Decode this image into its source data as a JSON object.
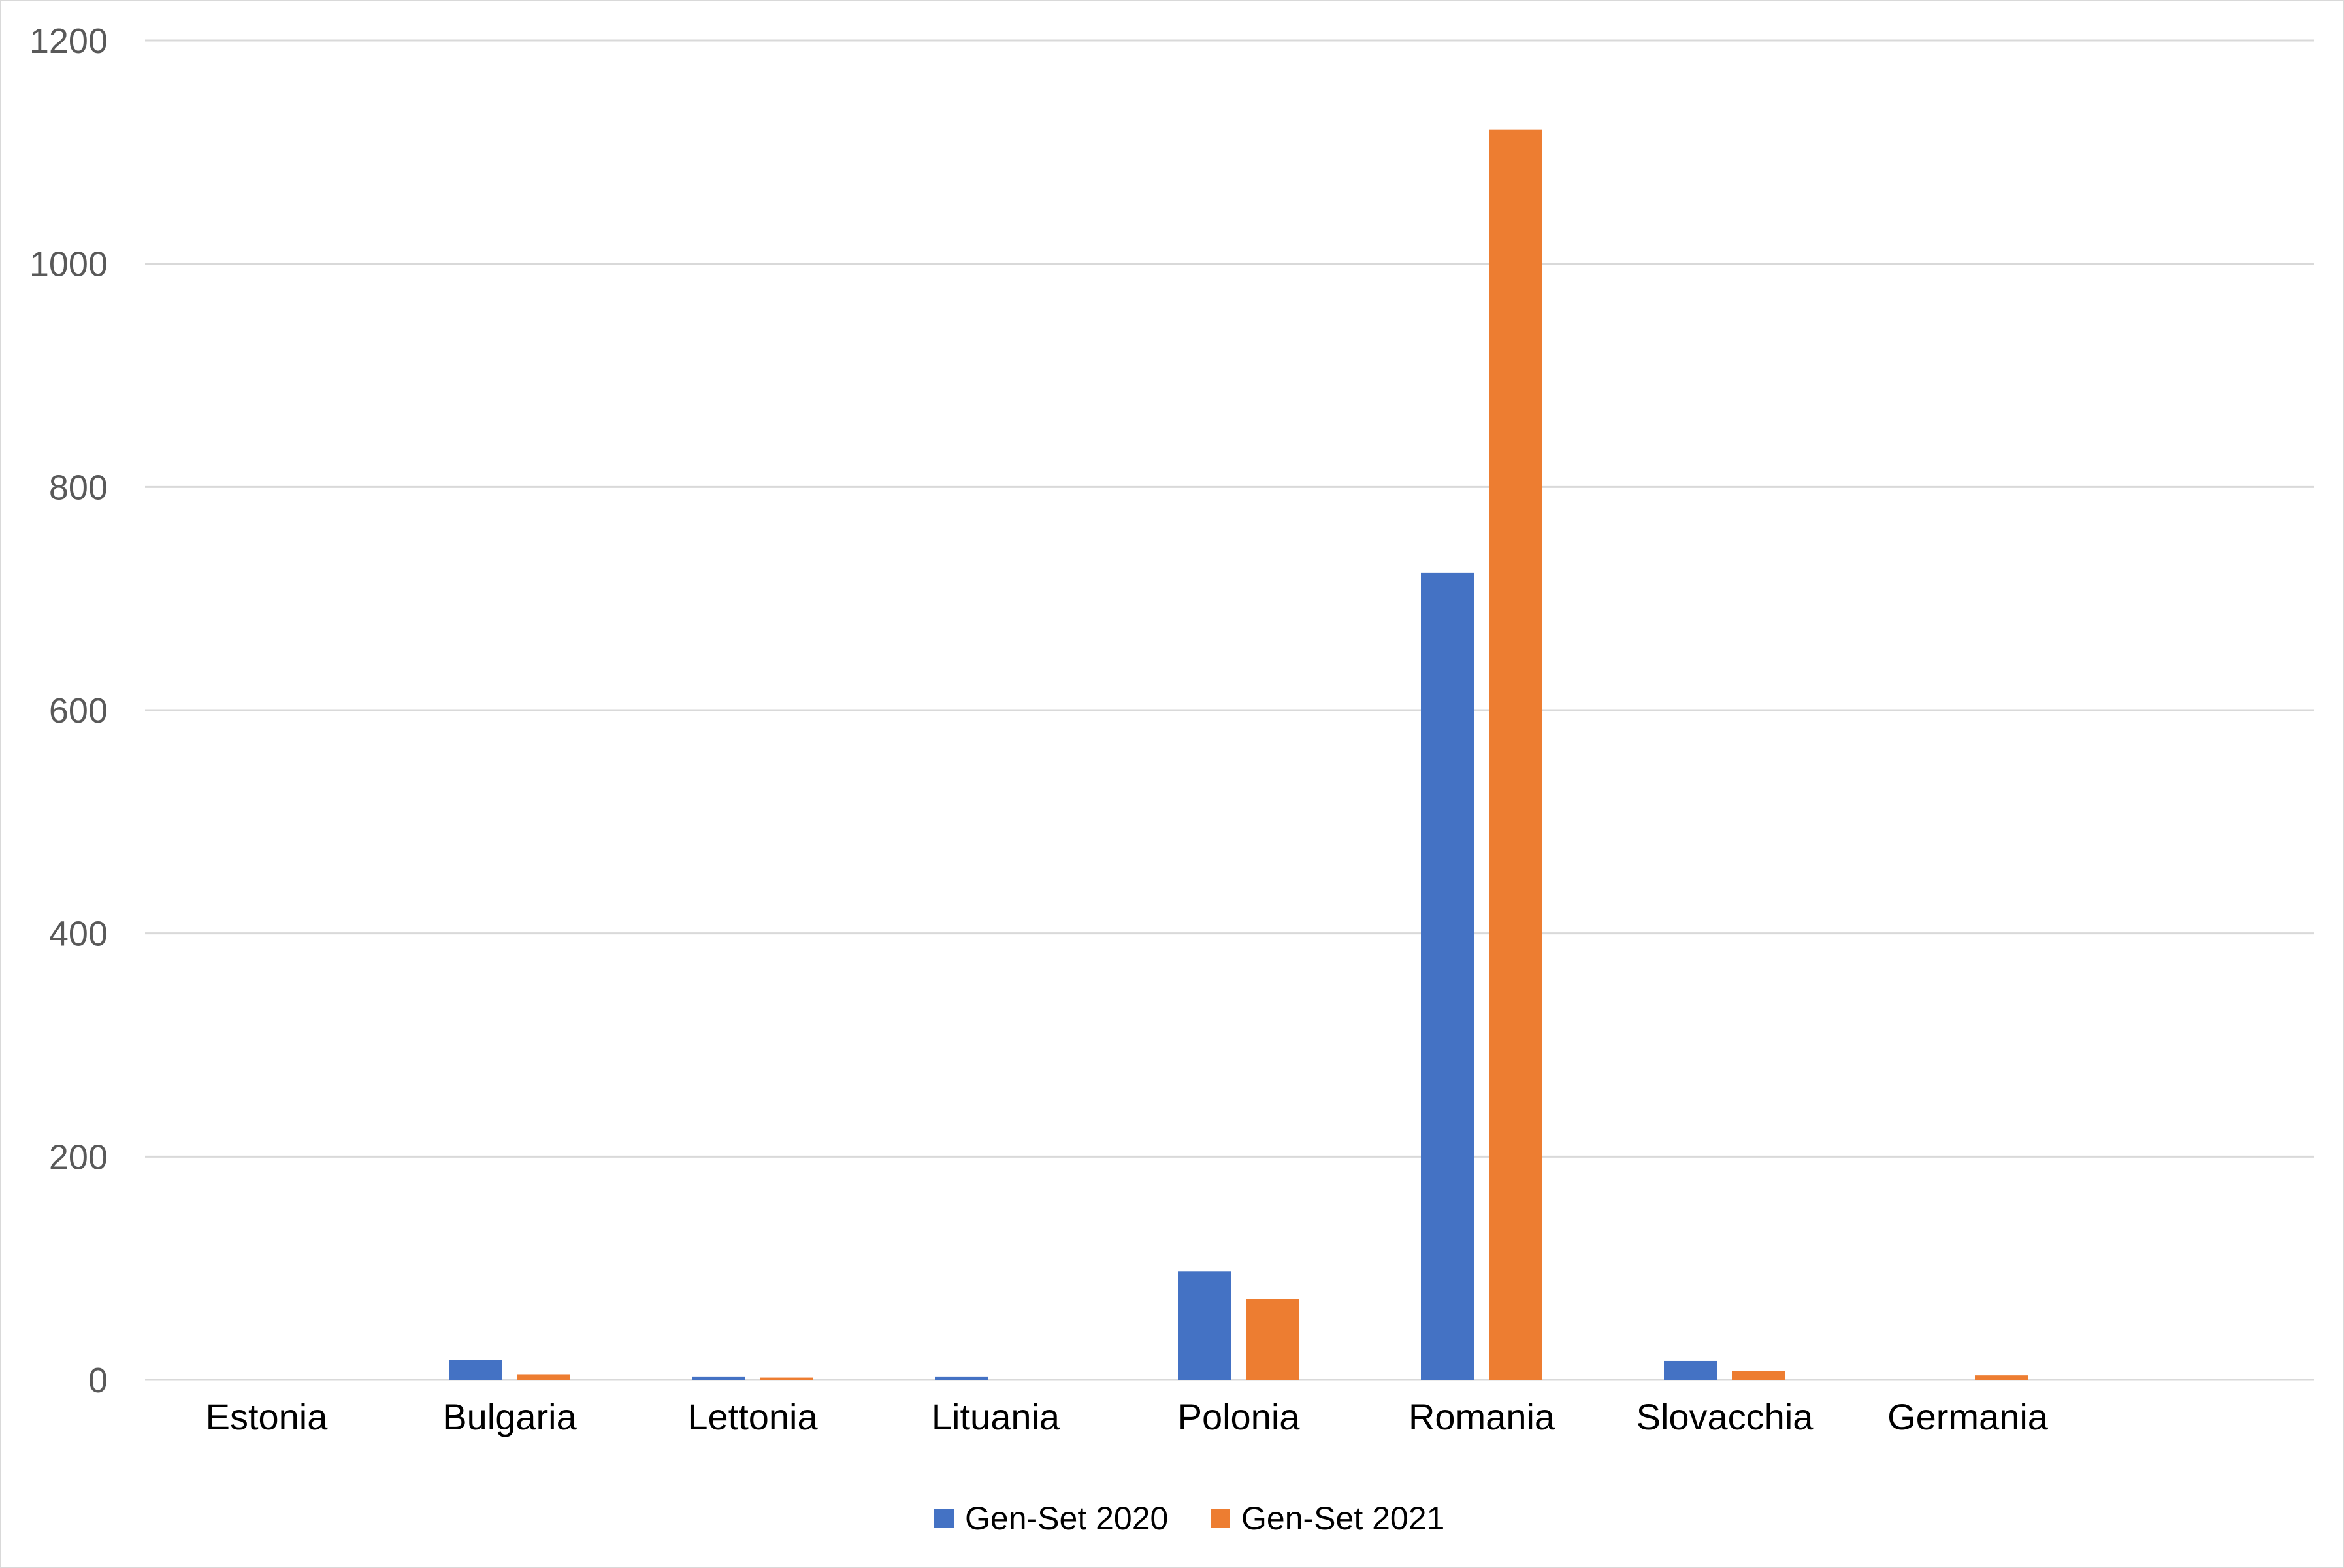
{
  "chart_data": {
    "type": "bar",
    "title": "",
    "xlabel": "",
    "ylabel": "",
    "categories": [
      "Estonia",
      "Bulgaria",
      "Lettonia",
      "Lituania",
      "Polonia",
      "Romania",
      "Slovacchia",
      "Germania"
    ],
    "series": [
      {
        "name": "Gen-Set 2020",
        "color": "#4472c4",
        "values": [
          0,
          18,
          3,
          3,
          97,
          723,
          17,
          0
        ]
      },
      {
        "name": "Gen-Set 2021",
        "color": "#ed7d31",
        "values": [
          0,
          5,
          2,
          0,
          72,
          1120,
          8,
          4
        ]
      }
    ],
    "ylim": [
      0,
      1200
    ],
    "yticks": [
      0,
      200,
      400,
      600,
      800,
      1000,
      1200
    ],
    "grid": true,
    "legend_position": "bottom",
    "colors": {
      "grid": "#d9d9d9",
      "axis_text": "#595959",
      "category_text": "#000000"
    }
  }
}
